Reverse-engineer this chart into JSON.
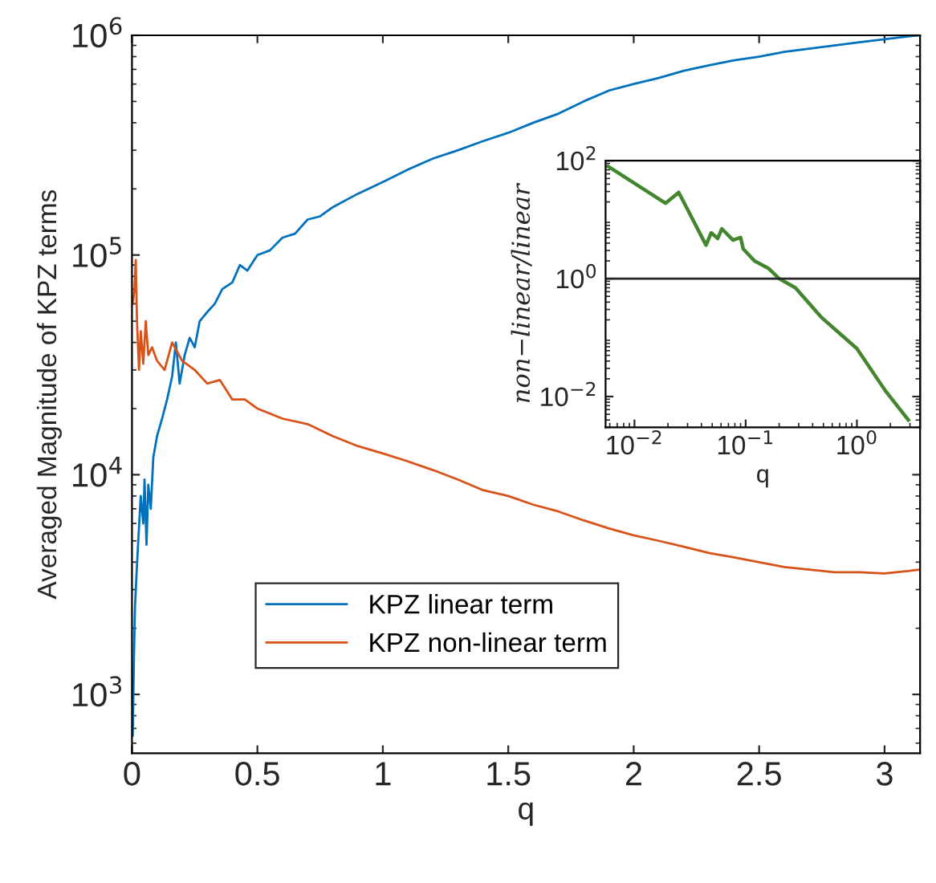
{
  "chart_data": [
    {
      "type": "line",
      "xlabel": "q",
      "ylabel": "Averaged Magnitude of KPZ terms",
      "log": "y",
      "legend": "bottom left",
      "grid": false,
      "xlim": [
        0,
        3.1416
      ],
      "xticks": [
        0,
        0.5,
        1,
        1.5,
        2,
        2.5,
        3
      ],
      "ylim": [
        540,
        1000000
      ],
      "yticks": [
        {
          "value": 1000,
          "label": "10$^{3}$"
        },
        {
          "value": 10000,
          "label": "10$^{4}$"
        },
        {
          "value": 100000,
          "label": "10$^{5}$"
        },
        {
          "value": 1000000,
          "label": "10$^{6}$"
        }
      ],
      "series": [
        {
          "name": "KPZ linear term",
          "color": "#0072bd",
          "x": [
            0.003,
            0.008,
            0.012,
            0.018,
            0.025,
            0.035,
            0.045,
            0.05,
            0.058,
            0.065,
            0.075,
            0.085,
            0.1,
            0.12,
            0.14,
            0.16,
            0.175,
            0.19,
            0.21,
            0.23,
            0.25,
            0.27,
            0.3,
            0.33,
            0.36,
            0.4,
            0.43,
            0.46,
            0.5,
            0.55,
            0.6,
            0.65,
            0.7,
            0.75,
            0.8,
            0.9,
            1.0,
            1.1,
            1.2,
            1.3,
            1.4,
            1.5,
            1.6,
            1.7,
            1.8,
            1.9,
            2.0,
            2.1,
            2.2,
            2.3,
            2.4,
            2.5,
            2.6,
            2.7,
            2.8,
            2.9,
            3.0,
            3.1,
            3.14
          ],
          "values": [
            650,
            1500,
            2500,
            3500,
            5000,
            8000,
            6000,
            9500,
            4800,
            9000,
            7000,
            12000,
            15000,
            18000,
            22000,
            28000,
            40000,
            26000,
            35000,
            42000,
            38000,
            50000,
            55000,
            60000,
            70000,
            75000,
            90000,
            85000,
            100000,
            105000,
            120000,
            125000,
            145000,
            150000,
            165000,
            190000,
            215000,
            245000,
            275000,
            300000,
            330000,
            360000,
            400000,
            440000,
            500000,
            560000,
            600000,
            640000,
            690000,
            730000,
            770000,
            800000,
            840000,
            870000,
            900000,
            930000,
            960000,
            990000,
            1000000
          ]
        },
        {
          "name": "KPZ non-linear term",
          "color": "#d95319",
          "x": [
            0.003,
            0.01,
            0.015,
            0.02,
            0.028,
            0.035,
            0.045,
            0.055,
            0.065,
            0.08,
            0.1,
            0.13,
            0.16,
            0.2,
            0.25,
            0.3,
            0.35,
            0.4,
            0.45,
            0.5,
            0.6,
            0.7,
            0.8,
            0.9,
            1.0,
            1.1,
            1.2,
            1.3,
            1.4,
            1.5,
            1.6,
            1.7,
            1.8,
            1.9,
            2.0,
            2.1,
            2.2,
            2.3,
            2.4,
            2.5,
            2.6,
            2.7,
            2.8,
            2.9,
            3.0,
            3.1,
            3.14
          ],
          "values": [
            60000,
            70000,
            95000,
            50000,
            30000,
            45000,
            32000,
            50000,
            35000,
            38000,
            33000,
            30000,
            40000,
            33000,
            30000,
            26000,
            27000,
            22000,
            22000,
            20000,
            18000,
            17000,
            15000,
            13500,
            12500,
            11500,
            10500,
            9500,
            8500,
            8000,
            7300,
            6800,
            6200,
            5700,
            5300,
            5000,
            4700,
            4400,
            4200,
            4000,
            3800,
            3700,
            3600,
            3600,
            3550,
            3650,
            3700
          ]
        }
      ]
    },
    {
      "type": "line",
      "xlabel": "q",
      "ylabel": "non−linear/linear",
      "log": "xy",
      "grid": false,
      "xlim": [
        0.0055,
        3.7
      ],
      "xticks": [
        {
          "value": 0.01,
          "label": "10$^{−2}$"
        },
        {
          "value": 0.1,
          "label": "10$^{−1}$"
        },
        {
          "value": 1,
          "label": "10$^{0}$"
        }
      ],
      "ylim": [
        0.003,
        100
      ],
      "yticks": [
        {
          "value": 0.01,
          "label": "10$^{−2}$"
        },
        {
          "value": 1,
          "label": "10$^{0}$"
        },
        {
          "value": 100,
          "label": "10$^{2}$"
        }
      ],
      "ref_lines": [
        {
          "axis": "y",
          "value": 1,
          "color": "#262626"
        }
      ],
      "series": [
        {
          "color": "#43862f",
          "x": [
            0.0058,
            0.019,
            0.025,
            0.044,
            0.049,
            0.056,
            0.061,
            0.077,
            0.09,
            0.095,
            0.12,
            0.16,
            0.2,
            0.28,
            0.48,
            1.0,
            1.8,
            2.9
          ],
          "values": [
            80,
            19,
            29,
            3.7,
            6,
            4.8,
            7,
            4.5,
            5,
            3.2,
            2,
            1.5,
            1,
            0.7,
            0.22,
            0.065,
            0.0126,
            0.004
          ]
        }
      ]
    }
  ]
}
